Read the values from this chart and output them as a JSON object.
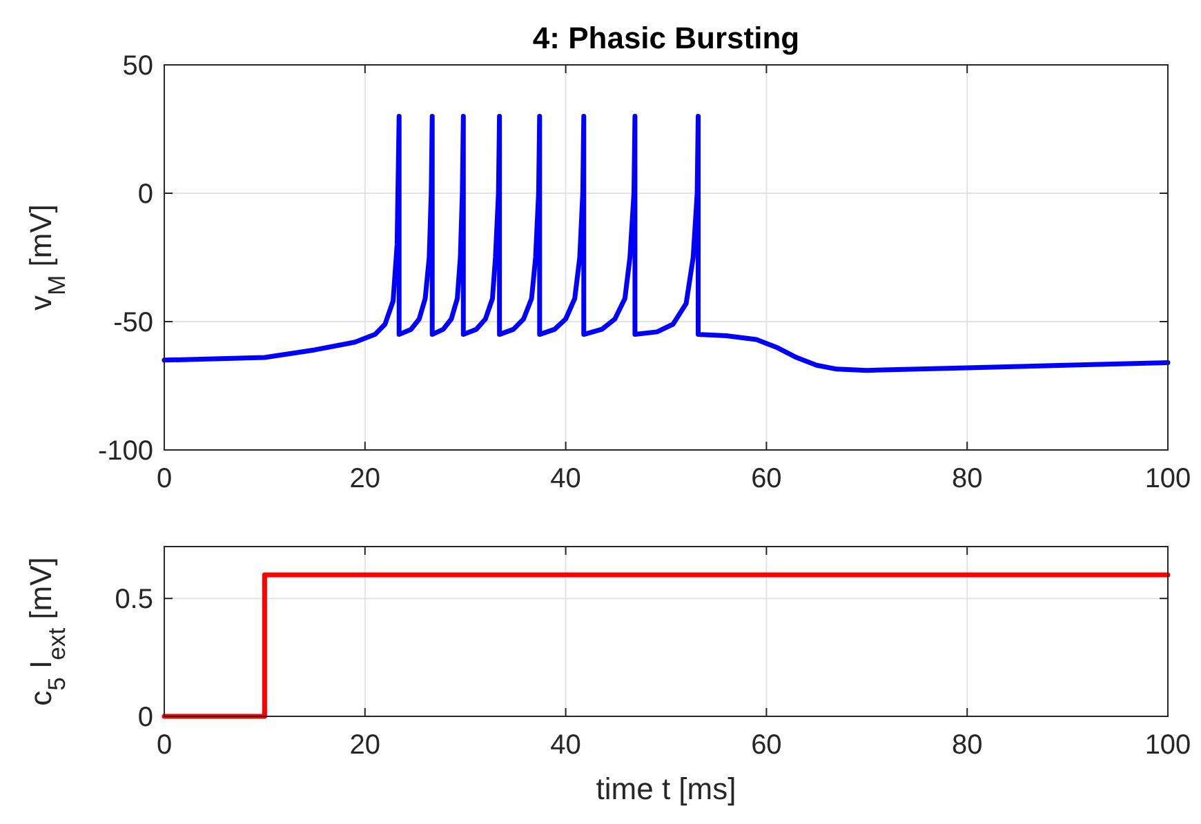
{
  "chart_data": [
    {
      "type": "line",
      "title": "4: Phasic Bursting",
      "ylabel": "v$_{M}$ [mV]",
      "xlim": [
        0,
        100
      ],
      "ylim": [
        -100,
        50
      ],
      "xticks": [
        0,
        20,
        40,
        60,
        80,
        100
      ],
      "yticks": [
        -100,
        -50,
        0,
        50
      ],
      "grid": true,
      "series": [
        {
          "color": "#0000ff",
          "x": [
            0,
            10,
            15,
            19,
            21,
            22,
            22.8,
            23.2,
            23.4,
            23.4,
            24.6,
            25.4,
            26.0,
            26.4,
            26.6,
            26.7,
            26.7,
            27.8,
            28.6,
            29.2,
            29.5,
            29.7,
            29.8,
            29.8,
            31.1,
            32.0,
            32.7,
            33.0,
            33.3,
            33.4,
            33.4,
            34.8,
            35.8,
            36.6,
            37.0,
            37.3,
            37.4,
            37.4,
            38.9,
            40.0,
            40.9,
            41.4,
            41.7,
            41.8,
            41.8,
            43.6,
            44.9,
            45.9,
            46.4,
            46.8,
            46.9,
            46.9,
            49.1,
            50.7,
            52.0,
            52.7,
            53.1,
            53.2,
            53.2,
            56,
            59,
            61,
            63,
            65,
            67,
            70,
            80,
            100
          ],
          "values": [
            -65,
            -64,
            -61,
            -58,
            -55,
            -51,
            -42,
            -20,
            30,
            -55,
            -53,
            -49,
            -41,
            -25,
            0,
            30,
            -55,
            -53,
            -49,
            -41,
            -25,
            0,
            30,
            -55,
            -53,
            -49,
            -41,
            -25,
            0,
            30,
            -55,
            -53,
            -49,
            -41,
            -25,
            0,
            30,
            -55,
            -53,
            -49,
            -41,
            -25,
            0,
            30,
            -55,
            -53,
            -49,
            -41,
            -25,
            0,
            30,
            -55,
            -54,
            -51,
            -43,
            -25,
            0,
            30,
            -55,
            -55.5,
            -57,
            -60,
            -64,
            -67,
            -68.5,
            -69,
            -68,
            -66
          ]
        }
      ]
    },
    {
      "type": "line",
      "ylabel": "c$_{5}$ I$_{ext}$ [mV]",
      "xlabel": "time t [ms]",
      "xlim": [
        0,
        100
      ],
      "ylim": [
        0,
        0.72
      ],
      "xticks": [
        0,
        20,
        40,
        60,
        80,
        100
      ],
      "yticks": [
        0,
        0.5
      ],
      "grid": true,
      "series": [
        {
          "color": "#ff0000",
          "x": [
            0,
            10,
            10,
            100
          ],
          "values": [
            0,
            0,
            0.6,
            0.6
          ]
        }
      ]
    }
  ]
}
